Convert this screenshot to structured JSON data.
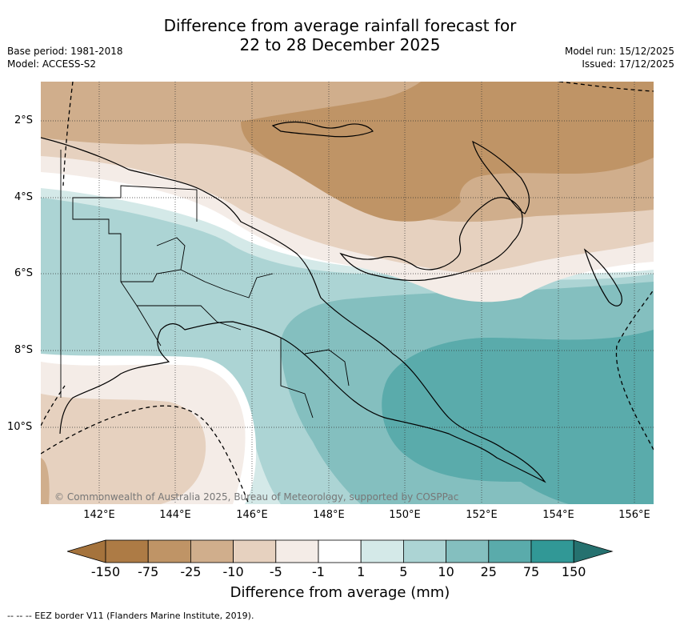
{
  "title_line1": "Difference from average rainfall forecast for",
  "title_line2": "22 to 28 December 2025",
  "base_period": "Base period: 1981-2018",
  "model": "Model: ACCESS-S2",
  "model_run": "Model run: 15/12/2025",
  "issued": "Issued: 17/12/2025",
  "latitude_labels": [
    "2°S",
    "4°S",
    "6°S",
    "8°S",
    "10°S"
  ],
  "longitude_labels": [
    "142°E",
    "144°E",
    "146°E",
    "148°E",
    "150°E",
    "152°E",
    "154°E",
    "156°E"
  ],
  "copyright": "© Commonwealth of Australia 2025, Bureau of Meteorology, supported by COSPPac",
  "colorbar": {
    "title": "Difference from average (mm)",
    "ticks": [
      "-150",
      "-75",
      "-25",
      "-10",
      "-5",
      "-1",
      "1",
      "5",
      "10",
      "25",
      "75",
      "150"
    ],
    "colors": [
      "#a5733c",
      "#ad7b45",
      "#bf9466",
      "#d0ae8c",
      "#e6d1bf",
      "#f4ece7",
      "#ffffff",
      "#d4e9e8",
      "#acd4d4",
      "#84bfbf",
      "#5aabab",
      "#319896",
      "#25716f"
    ]
  },
  "footnote": "--  --  -- EEZ border V11 (Flanders Marine Institute, 2019)."
}
